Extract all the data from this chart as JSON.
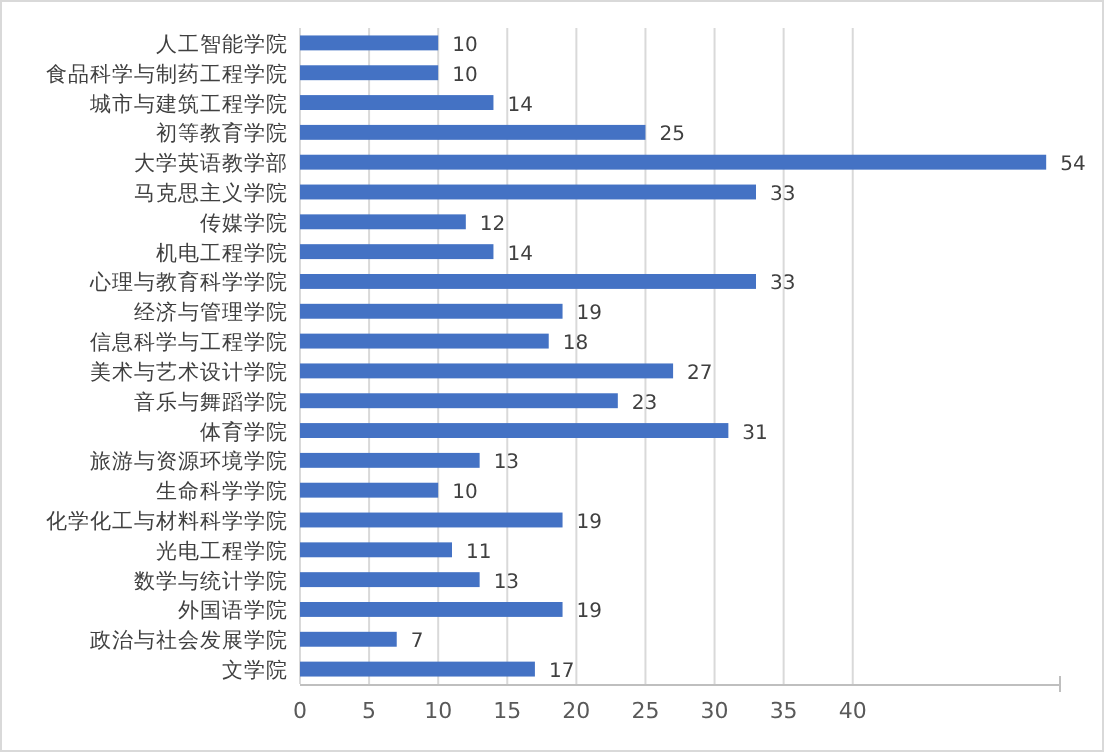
{
  "chart_data": {
    "type": "bar",
    "orientation": "horizontal",
    "color": "#4472c4",
    "data_labels": true,
    "grid": "x",
    "xlim": [
      0,
      55
    ],
    "xticks": [
      0,
      5,
      10,
      15,
      20,
      25,
      30,
      35,
      40
    ],
    "categories": [
      "人工智能学院",
      "食品科学与制药工程学院",
      "城市与建筑工程学院",
      "初等教育学院",
      "大学英语教学部",
      "马克思主义学院",
      "传媒学院",
      "机电工程学院",
      "心理与教育科学学院",
      "经济与管理学院",
      "信息科学与工程学院",
      "美术与艺术设计学院",
      "音乐与舞蹈学院",
      "体育学院",
      "旅游与资源环境学院",
      "生命科学学院",
      "化学化工与材料科学学院",
      "光电工程学院",
      "数学与统计学院",
      "外国语学院",
      "政治与社会发展学院",
      "文学院"
    ],
    "values": [
      10,
      10,
      14,
      25,
      54,
      33,
      12,
      14,
      33,
      19,
      18,
      27,
      23,
      31,
      13,
      10,
      19,
      11,
      13,
      19,
      7,
      17
    ]
  }
}
